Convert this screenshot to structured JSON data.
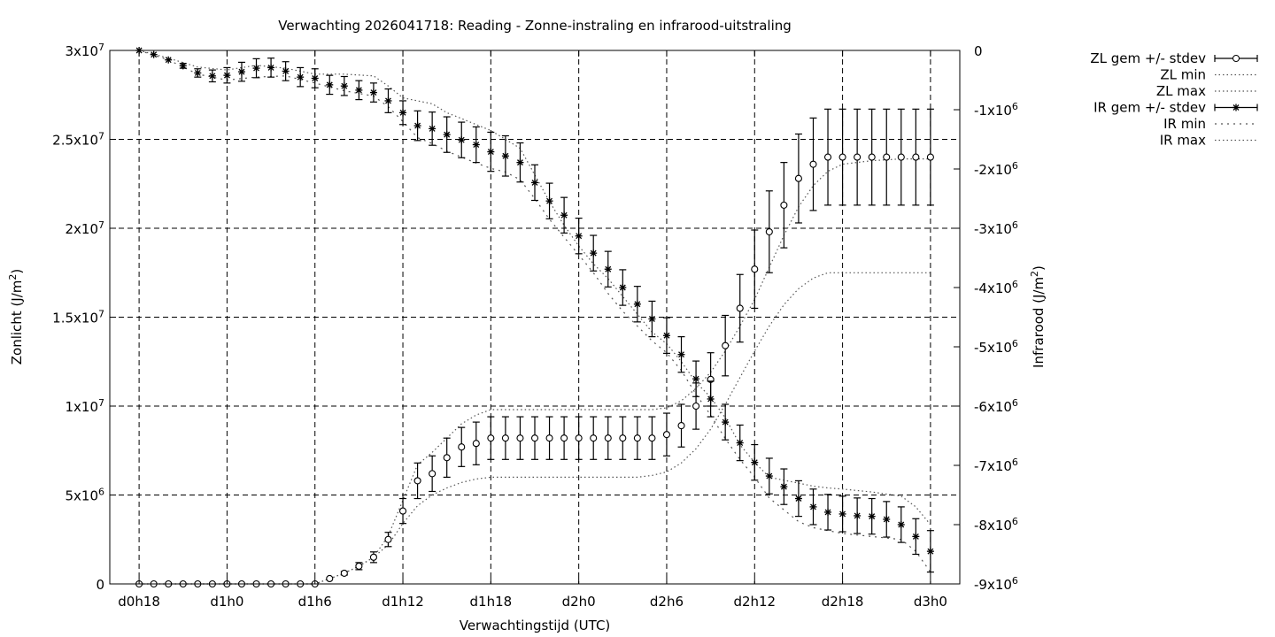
{
  "chart_data": {
    "type": "line",
    "title": "Verwachting 2026041718: Reading - Zonne-instraling en infrarood-uitstraling",
    "xlabel": "Verwachtingstijd (UTC)",
    "y1label": {
      "base": "Zonlicht (J/m",
      "sup": "2",
      "tail": ")"
    },
    "y2label": {
      "base": "Infrarood (J/m",
      "sup": "2",
      "tail": ")"
    },
    "x_ticks": [
      {
        "h": 0,
        "label": "d0h18"
      },
      {
        "h": 6,
        "label": "d1h0"
      },
      {
        "h": 12,
        "label": "d1h6"
      },
      {
        "h": 18,
        "label": "d1h12"
      },
      {
        "h": 24,
        "label": "d1h18"
      },
      {
        "h": 30,
        "label": "d2h0"
      },
      {
        "h": 36,
        "label": "d2h6"
      },
      {
        "h": 42,
        "label": "d2h12"
      },
      {
        "h": 48,
        "label": "d2h18"
      },
      {
        "h": 54,
        "label": "d3h0"
      }
    ],
    "xlim": [
      -2,
      56
    ],
    "y1lim": [
      0,
      30000000
    ],
    "y1_ticks": [
      {
        "v": 0,
        "base": "0",
        "exp": ""
      },
      {
        "v": 5000000,
        "base": "5x10",
        "exp": "6"
      },
      {
        "v": 10000000,
        "base": "1x10",
        "exp": "7"
      },
      {
        "v": 15000000,
        "base": "1.5x10",
        "exp": "7"
      },
      {
        "v": 20000000,
        "base": "2x10",
        "exp": "7"
      },
      {
        "v": 25000000,
        "base": "2.5x10",
        "exp": "7"
      },
      {
        "v": 30000000,
        "base": "3x10",
        "exp": "7"
      }
    ],
    "y2lim": [
      -9000000,
      0
    ],
    "y2_ticks": [
      {
        "v": 0,
        "base": "0",
        "exp": ""
      },
      {
        "v": -1000000,
        "base": "-1x10",
        "exp": "6"
      },
      {
        "v": -2000000,
        "base": "-2x10",
        "exp": "6"
      },
      {
        "v": -3000000,
        "base": "-3x10",
        "exp": "6"
      },
      {
        "v": -4000000,
        "base": "-4x10",
        "exp": "6"
      },
      {
        "v": -5000000,
        "base": "-5x10",
        "exp": "6"
      },
      {
        "v": -6000000,
        "base": "-6x10",
        "exp": "6"
      },
      {
        "v": -7000000,
        "base": "-7x10",
        "exp": "6"
      },
      {
        "v": -8000000,
        "base": "-8x10",
        "exp": "6"
      },
      {
        "v": -9000000,
        "base": "-9x10",
        "exp": "6"
      }
    ],
    "grid": true,
    "legend_position": "outside-right-top",
    "legend": [
      {
        "label": "ZL gem +/- stdev",
        "style": "errorbar-circle"
      },
      {
        "label": "ZL min",
        "style": "dotted"
      },
      {
        "label": "ZL max",
        "style": "dotted"
      },
      {
        "label": "IR gem +/- stdev",
        "style": "errorbar-star"
      },
      {
        "label": "IR min",
        "style": "dotted-coarse"
      },
      {
        "label": "IR max",
        "style": "dotted"
      }
    ],
    "series": [
      {
        "name": "ZL gem +/- stdev",
        "axis": "y1",
        "x": [
          0,
          1,
          2,
          3,
          4,
          5,
          6,
          7,
          8,
          9,
          10,
          11,
          12,
          13,
          14,
          15,
          16,
          17,
          18,
          19,
          20,
          21,
          22,
          23,
          24,
          25,
          26,
          27,
          28,
          29,
          30,
          31,
          32,
          33,
          34,
          35,
          36,
          37,
          38,
          39,
          40,
          41,
          42,
          43,
          44,
          45,
          46,
          47,
          48,
          49,
          50,
          51,
          52,
          53,
          54
        ],
        "mean": [
          0,
          0,
          0,
          0,
          0,
          0,
          0,
          0,
          0,
          0,
          0,
          0,
          0,
          300000,
          600000,
          1000000,
          1500000,
          2500000,
          4100000,
          5800000,
          6200000,
          7100000,
          7700000,
          7900000,
          8200000,
          8200000,
          8200000,
          8200000,
          8200000,
          8200000,
          8200000,
          8200000,
          8200000,
          8200000,
          8200000,
          8200000,
          8400000,
          8900000,
          10000000,
          11500000,
          13400000,
          15500000,
          17700000,
          19800000,
          21300000,
          22800000,
          23600000,
          24000000,
          24000000,
          24000000,
          24000000,
          24000000,
          24000000,
          24000000,
          24000000
        ],
        "stdev": [
          0,
          0,
          0,
          0,
          0,
          0,
          0,
          0,
          0,
          0,
          0,
          0,
          0,
          0,
          100000,
          200000,
          300000,
          400000,
          700000,
          1000000,
          1000000,
          1100000,
          1100000,
          1200000,
          1200000,
          1200000,
          1200000,
          1200000,
          1200000,
          1200000,
          1200000,
          1200000,
          1200000,
          1200000,
          1200000,
          1200000,
          1200000,
          1200000,
          1300000,
          1500000,
          1700000,
          1900000,
          2200000,
          2300000,
          2400000,
          2500000,
          2600000,
          2700000,
          2700000,
          2700000,
          2700000,
          2700000,
          2700000,
          2700000,
          2700000
        ]
      },
      {
        "name": "ZL min",
        "axis": "y1",
        "x": [
          0,
          12,
          13,
          14,
          15,
          16,
          17,
          18,
          19,
          20,
          21,
          22,
          23,
          24,
          26,
          28,
          30,
          32,
          34,
          35,
          36,
          37,
          38,
          39,
          40,
          41,
          42,
          43,
          44,
          45,
          46,
          47,
          48,
          50,
          52,
          54
        ],
        "values": [
          0,
          0,
          300000,
          600000,
          1000000,
          1500000,
          2200000,
          3400000,
          4400000,
          5000000,
          5400000,
          5700000,
          5900000,
          6000000,
          6000000,
          6000000,
          6000000,
          6000000,
          6000000,
          6100000,
          6300000,
          6800000,
          7600000,
          8700000,
          10100000,
          11600000,
          13100000,
          14500000,
          15700000,
          16600000,
          17200000,
          17500000,
          17500000,
          17500000,
          17500000,
          17500000
        ]
      },
      {
        "name": "ZL max",
        "axis": "y1",
        "x": [
          0,
          12,
          13,
          14,
          15,
          16,
          17,
          18,
          19,
          20,
          21,
          22,
          23,
          24,
          26,
          28,
          30,
          32,
          34,
          35,
          36,
          37,
          38,
          39,
          40,
          41,
          42,
          43,
          44,
          45,
          46,
          47,
          48,
          50,
          52,
          54
        ],
        "values": [
          0,
          0,
          300000,
          600000,
          1000000,
          1500000,
          2700000,
          4700000,
          6700000,
          7400000,
          8200000,
          9000000,
          9500000,
          9800000,
          9800000,
          9800000,
          9800000,
          9800000,
          9800000,
          9800000,
          9900000,
          10300000,
          11000000,
          11900000,
          13100000,
          14500000,
          16000000,
          17800000,
          19600000,
          21200000,
          22400000,
          23200000,
          23600000,
          23800000,
          23900000,
          23900000
        ]
      },
      {
        "name": "IR gem +/- stdev",
        "axis": "y2",
        "x": [
          0,
          1,
          2,
          3,
          4,
          5,
          6,
          7,
          8,
          9,
          10,
          11,
          12,
          13,
          14,
          15,
          16,
          17,
          18,
          19,
          20,
          21,
          22,
          23,
          24,
          25,
          26,
          27,
          28,
          29,
          30,
          31,
          32,
          33,
          34,
          35,
          36,
          37,
          38,
          39,
          40,
          41,
          42,
          43,
          44,
          45,
          46,
          47,
          48,
          49,
          50,
          51,
          52,
          53,
          54
        ],
        "mean": [
          0,
          -70000,
          -160000,
          -260000,
          -380000,
          -430000,
          -420000,
          -360000,
          -300000,
          -290000,
          -350000,
          -450000,
          -470000,
          -580000,
          -600000,
          -670000,
          -710000,
          -850000,
          -1050000,
          -1270000,
          -1320000,
          -1420000,
          -1510000,
          -1590000,
          -1710000,
          -1780000,
          -1890000,
          -2230000,
          -2540000,
          -2780000,
          -3130000,
          -3420000,
          -3690000,
          -4000000,
          -4280000,
          -4530000,
          -4810000,
          -5130000,
          -5540000,
          -5880000,
          -6270000,
          -6620000,
          -6950000,
          -7180000,
          -7360000,
          -7560000,
          -7700000,
          -7790000,
          -7820000,
          -7850000,
          -7860000,
          -7910000,
          -8000000,
          -8200000,
          -8450000
        ],
        "stdev": [
          0,
          0,
          0,
          40000,
          70000,
          100000,
          130000,
          160000,
          160000,
          160000,
          160000,
          160000,
          160000,
          160000,
          160000,
          160000,
          160000,
          200000,
          200000,
          250000,
          280000,
          300000,
          300000,
          300000,
          330000,
          340000,
          330000,
          300000,
          300000,
          300000,
          300000,
          300000,
          300000,
          300000,
          300000,
          300000,
          300000,
          300000,
          300000,
          300000,
          300000,
          300000,
          300000,
          300000,
          300000,
          300000,
          300000,
          300000,
          300000,
          300000,
          300000,
          300000,
          300000,
          300000,
          350000
        ]
      },
      {
        "name": "IR min",
        "axis": "y2",
        "x": [
          0,
          2,
          4,
          6,
          8,
          10,
          12,
          14,
          16,
          17,
          18,
          19,
          20,
          21,
          22,
          23,
          24,
          25,
          26,
          27,
          28,
          29,
          30,
          31,
          32,
          33,
          34,
          35,
          36,
          37,
          38,
          39,
          40,
          41,
          42,
          43,
          44,
          45,
          46,
          47,
          48,
          50,
          52,
          53,
          54
        ],
        "values": [
          0,
          -160000,
          -400000,
          -500000,
          -450000,
          -430000,
          -550000,
          -680000,
          -770000,
          -950000,
          -1200000,
          -1470000,
          -1570000,
          -1700000,
          -1800000,
          -1900000,
          -1990000,
          -2050000,
          -2180000,
          -2500000,
          -2850000,
          -3150000,
          -3450000,
          -3750000,
          -4100000,
          -4400000,
          -4650000,
          -4900000,
          -5100000,
          -5400000,
          -5800000,
          -6150000,
          -6550000,
          -6900000,
          -7200000,
          -7550000,
          -7750000,
          -7950000,
          -8050000,
          -8100000,
          -8150000,
          -8200000,
          -8250000,
          -8450000,
          -8800000
        ]
      },
      {
        "name": "IR max",
        "axis": "y2",
        "x": [
          0,
          2,
          4,
          6,
          8,
          10,
          12,
          14,
          16,
          17,
          18,
          19,
          20,
          21,
          22,
          23,
          24,
          25,
          26,
          27,
          28,
          29,
          30,
          31,
          32,
          33,
          34,
          35,
          36,
          37,
          38,
          39,
          40,
          41,
          42,
          43,
          44,
          45,
          46,
          47,
          48,
          50,
          52,
          53,
          54
        ],
        "values": [
          0,
          -130000,
          -280000,
          -330000,
          -250000,
          -300000,
          -400000,
          -400000,
          -430000,
          -600000,
          -800000,
          -850000,
          -900000,
          -1050000,
          -1150000,
          -1250000,
          -1350000,
          -1500000,
          -1650000,
          -2100000,
          -2550000,
          -2950000,
          -3300000,
          -3600000,
          -3850000,
          -4150000,
          -4450000,
          -4750000,
          -4950000,
          -5250000,
          -5600000,
          -5850000,
          -6200000,
          -6650000,
          -6950000,
          -7200000,
          -7250000,
          -7300000,
          -7350000,
          -7380000,
          -7400000,
          -7450000,
          -7520000,
          -7700000,
          -8000000
        ]
      }
    ]
  }
}
